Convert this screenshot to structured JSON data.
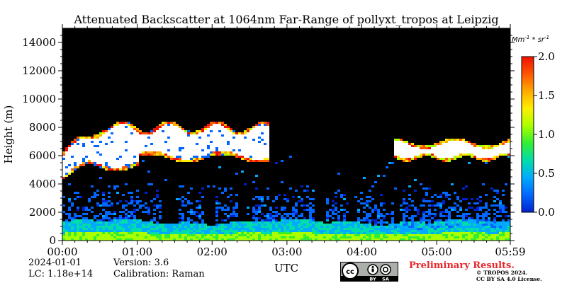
{
  "chart_data": {
    "type": "heatmap",
    "title": "Attenuated Backscatter at 1064nm Far-Range of pollyxt_tropos at Leipzig",
    "xlabel": "UTC",
    "ylabel": "Height (m)",
    "x_ticks": [
      "00:00",
      "01:00",
      "02:00",
      "03:00",
      "04:00",
      "05:00",
      "05:59"
    ],
    "x_tick_minutes": [
      0,
      60,
      120,
      180,
      240,
      300,
      359
    ],
    "xlim_minutes": [
      0,
      359
    ],
    "y_ticks": [
      "0",
      "2000",
      "4000",
      "6000",
      "8000",
      "10000",
      "12000",
      "14000"
    ],
    "ylim": [
      0,
      15000
    ],
    "colorbar": {
      "label": "Mm^-1 * sr^-1",
      "ticks": [
        "0.0",
        "0.5",
        "1.0",
        "1.5",
        "2.0"
      ],
      "range": [
        0,
        2.0
      ],
      "colormap": [
        "#0022cc",
        "#0066ff",
        "#00aaff",
        "#00ddaa",
        "#33ee33",
        "#aaff00",
        "#ffee00",
        "#ffaa00",
        "#ff5500",
        "#ee1100"
      ]
    },
    "layers": [
      {
        "description": "boundary layer",
        "x_minutes": [
          0,
          359
        ],
        "height_m": [
          0,
          1400
        ],
        "value": 1.2
      },
      {
        "description": "cloud",
        "x_minutes": [
          0,
          160
        ],
        "height_m": [
          4000,
          8800
        ],
        "value": 2.0
      },
      {
        "description": "cloud",
        "x_minutes": [
          260,
          359
        ],
        "height_m": [
          5500,
          7200
        ],
        "value": 2.0
      }
    ],
    "background": "#000000"
  },
  "info": {
    "date": "2024-01-01",
    "lc": "LC: 1.18e+14",
    "version": "Version: 3.6",
    "calibration": "Calibration: Raman"
  },
  "footer": {
    "preliminary": "Preliminary Results.",
    "copyright_line1": "© TROPOS 2024.",
    "copyright_line2": "CC BY SA 4.0 License.",
    "license_badge": "cc-by-sa-badge",
    "badge_by": "BY",
    "badge_sa": "SA"
  }
}
